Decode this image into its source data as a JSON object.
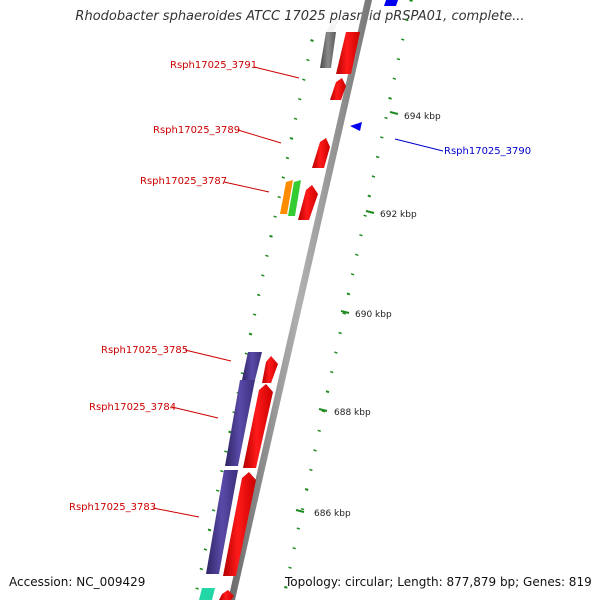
{
  "title": "Rhodobacter sphaeroides ATCC 17025 plasmid pRSPA01, complete...",
  "footer": {
    "accession": "Accession: NC_009429",
    "summary": "Topology: circular; Length: 877,879 bp; Genes: 819"
  },
  "colors": {
    "backbone": "#8c8c8c",
    "ticks": "#1f8a1f",
    "gene_red": "#ff0000",
    "gene_blue_label": "#0000cc",
    "gene_red_label": "#cc0000",
    "gene_purple": "#4b3c96",
    "gene_grey": "#6e6e6e",
    "gene_orange": "#ff8c00",
    "gene_green": "#33cc33",
    "gene_teal": "#22d6a8",
    "gene_blue": "#0000ee"
  },
  "gene_labels": [
    {
      "text": "Rsph17025_3791",
      "color": "#cc0000"
    },
    {
      "text": "Rsph17025_3789",
      "color": "#cc0000"
    },
    {
      "text": "Rsph17025_3787",
      "color": "#cc0000"
    },
    {
      "text": "Rsph17025_3785",
      "color": "#cc0000"
    },
    {
      "text": "Rsph17025_3784",
      "color": "#cc0000"
    },
    {
      "text": "Rsph17025_3783",
      "color": "#cc0000"
    },
    {
      "text": "Rsph17025_3790",
      "color": "#0000cc"
    }
  ],
  "kbp_labels": [
    "694 kbp",
    "692 kbp",
    "690 kbp",
    "688 kbp",
    "686 kbp"
  ]
}
